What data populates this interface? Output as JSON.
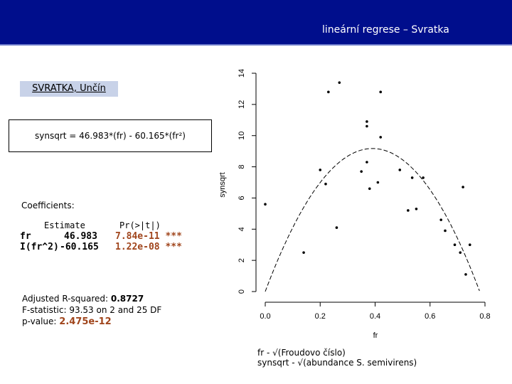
{
  "header": {
    "title": "lineární regrese – Svratka"
  },
  "site": "SVRATKA, Unčín",
  "equation": "synsqrt = 46.983*(fr) - 60.165*(fr²)",
  "coefficients": {
    "title": "Coefficients:",
    "head_estimate": "Estimate",
    "head_p": "Pr(>|t|)",
    "rows": [
      {
        "term": "fr",
        "p": "7.84e-11 ***"
      },
      {
        "term": "I(fr^2)",
        "p": "1.22e-08 ***"
      }
    ]
  },
  "stats": {
    "r2_label": "Adjusted R-squared:",
    "r2": "0.8727",
    "f": "F-statistic: 93.53 on 2 and 25 DF",
    "p_label": "p-value:",
    "p": "2.475e-12"
  },
  "notes": [
    "fr - √(Froudovo číslo)",
    "synsqrt - √(abundance S. semivirens)"
  ],
  "chart_data": {
    "type": "scatter",
    "x_label": "fr",
    "y_label": "synsqrt",
    "fit": [
      46.983,
      -60.165
    ],
    "x": [
      0.0,
      0.14,
      0.2,
      0.22,
      0.23,
      0.26,
      0.27,
      0.35,
      0.37,
      0.37,
      0.37,
      0.38,
      0.41,
      0.42,
      0.42,
      0.49,
      0.52,
      0.535,
      0.55,
      0.575,
      0.64,
      0.655,
      0.69,
      0.71,
      0.72,
      0.73,
      0.745
    ],
    "values": [
      5.6,
      2.5,
      7.8,
      6.9,
      12.8,
      4.1,
      13.4,
      7.7,
      8.3,
      10.9,
      10.6,
      6.6,
      7.0,
      12.8,
      9.9,
      7.8,
      5.2,
      7.3,
      5.3,
      7.3,
      4.6,
      3.9,
      3.0,
      2.5,
      6.7,
      1.1,
      3.0
    ],
    "color": "#000000",
    "xlim": [
      0,
      0.8
    ],
    "ylim": [
      0,
      14
    ],
    "xticks": [
      {
        "value": 0,
        "label": "0.0"
      },
      {
        "value": 0.2,
        "label": "0.2"
      },
      {
        "value": 0.4,
        "label": "0.4"
      },
      {
        "value": 0.6,
        "label": "0.6"
      },
      {
        "value": 0.8,
        "label": "0.8"
      }
    ],
    "yticks": [
      0,
      2,
      4,
      6,
      8,
      10,
      12,
      14
    ]
  }
}
